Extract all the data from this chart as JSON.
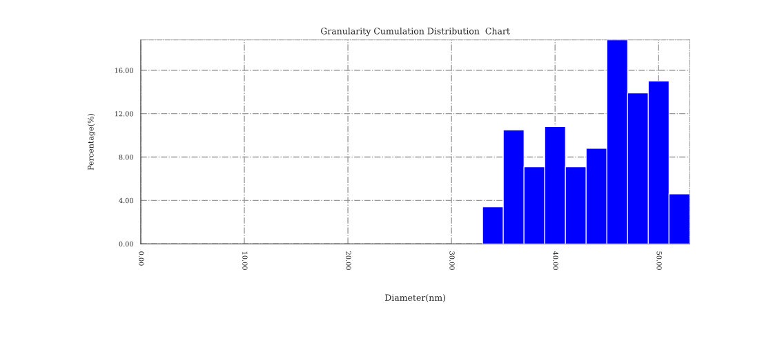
{
  "chart_data": {
    "type": "histogram",
    "title": "Granularity Cumulation Distribution  Chart",
    "xlabel": "Diameter(nm)",
    "ylabel": "Percentage(%)",
    "bins": [
      33,
      35,
      37,
      39,
      41,
      43,
      45,
      47,
      49,
      51,
      53
    ],
    "values": [
      3.4,
      10.5,
      7.1,
      10.8,
      7.1,
      8.8,
      18.8,
      13.9,
      15.0,
      4.6
    ],
    "color": "#0000ff",
    "xlim": [
      0,
      53
    ],
    "xticks": [
      {
        "value": 0,
        "label": "0.00"
      },
      {
        "value": 10,
        "label": "10.00"
      },
      {
        "value": 20,
        "label": "20.00"
      },
      {
        "value": 30,
        "label": "30.00"
      },
      {
        "value": 40,
        "label": "40.00"
      },
      {
        "value": 50,
        "label": "50.00"
      }
    ],
    "ylim": [
      0,
      18.8
    ],
    "yticks": [
      {
        "value": 0,
        "label": "0.00"
      },
      {
        "value": 4,
        "label": "4.00"
      },
      {
        "value": 8,
        "label": "8.00"
      },
      {
        "value": 12,
        "label": "12.00"
      },
      {
        "value": 16,
        "label": "16.00"
      }
    ],
    "grid": true
  }
}
